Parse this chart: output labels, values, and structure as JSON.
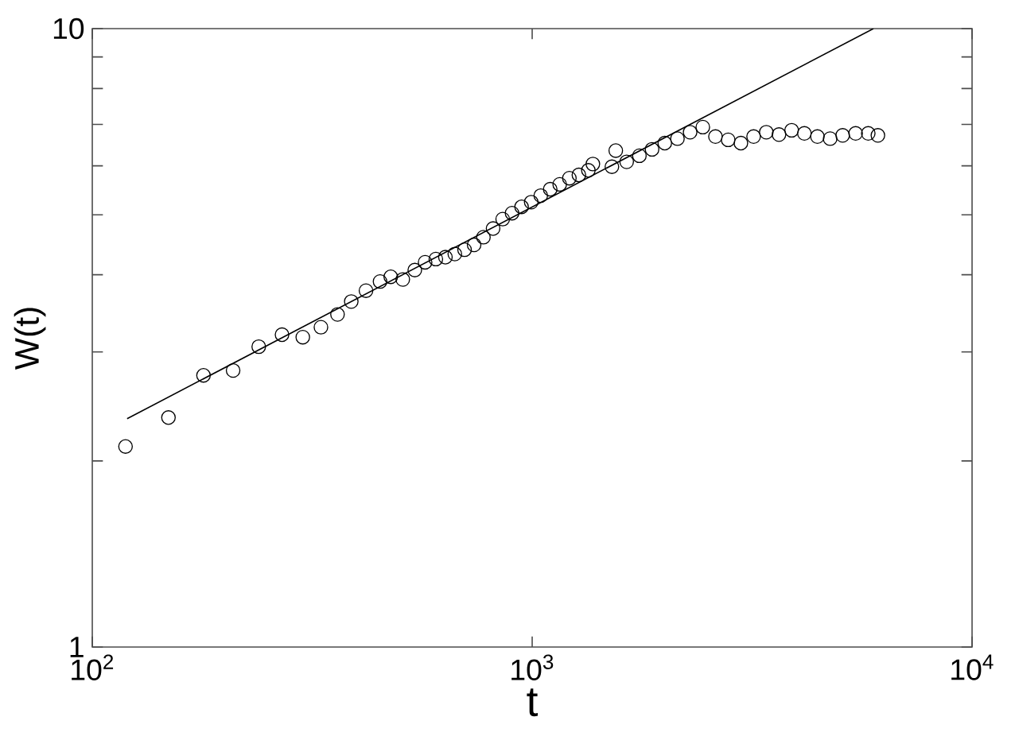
{
  "chart_data": {
    "type": "scatter",
    "xlabel": "t",
    "ylabel": "W(t)",
    "log": "xy",
    "xlim": [
      100,
      10000
    ],
    "ylim": [
      1,
      10
    ],
    "xticks": [
      {
        "value": 100,
        "label": "10$^{2}$"
      },
      {
        "value": 1000,
        "label": "10$^{3}$"
      },
      {
        "value": 10000,
        "label": "10$^{4}$"
      }
    ],
    "yticks": [
      1,
      {
        "value": 2,
        "label": null
      },
      {
        "value": 3,
        "label": null
      },
      {
        "value": 4,
        "label": null
      },
      {
        "value": 5,
        "label": null
      },
      {
        "value": 6,
        "label": null
      },
      {
        "value": 7,
        "label": null
      },
      {
        "value": 8,
        "label": null
      },
      {
        "value": 9,
        "label": null
      },
      10
    ],
    "series": [
      {
        "marker": "circle",
        "color": "#000000",
        "x": [
          119,
          149,
          179,
          209,
          239,
          270,
          301,
          331,
          361,
          388,
          419,
          451,
          477,
          508,
          541,
          571,
          604,
          635,
          667,
          702,
          738,
          775,
          815,
          857,
          900,
          946,
          995,
          1046,
          1099,
          1155,
          1215,
          1277,
          1342,
          1374,
          1518,
          1549,
          1640,
          1753,
          1873,
          2002,
          2139,
          2286,
          2443,
          2610,
          2790,
          2982,
          3187,
          3406,
          3640,
          3890,
          4157,
          4451,
          4757,
          5080,
          5437,
          5808,
          6109
        ],
        "values": [
          2.11,
          2.35,
          2.75,
          2.8,
          3.06,
          3.2,
          3.17,
          3.29,
          3.45,
          3.62,
          3.77,
          3.9,
          3.97,
          3.93,
          4.07,
          4.19,
          4.24,
          4.27,
          4.32,
          4.39,
          4.47,
          4.6,
          4.75,
          4.92,
          5.03,
          5.15,
          5.24,
          5.37,
          5.5,
          5.6,
          5.73,
          5.8,
          5.9,
          6.04,
          5.98,
          6.35,
          6.09,
          6.23,
          6.38,
          6.53,
          6.64,
          6.8,
          6.93,
          6.69,
          6.61,
          6.53,
          6.69,
          6.8,
          6.74,
          6.85,
          6.77,
          6.69,
          6.64,
          6.72,
          6.77,
          6.77,
          6.72
        ]
      },
      {
        "type": "line",
        "marker": "none",
        "color": "#000000",
        "x": [
          120,
          5968
        ],
        "values": [
          2.34,
          10
        ]
      }
    ]
  }
}
